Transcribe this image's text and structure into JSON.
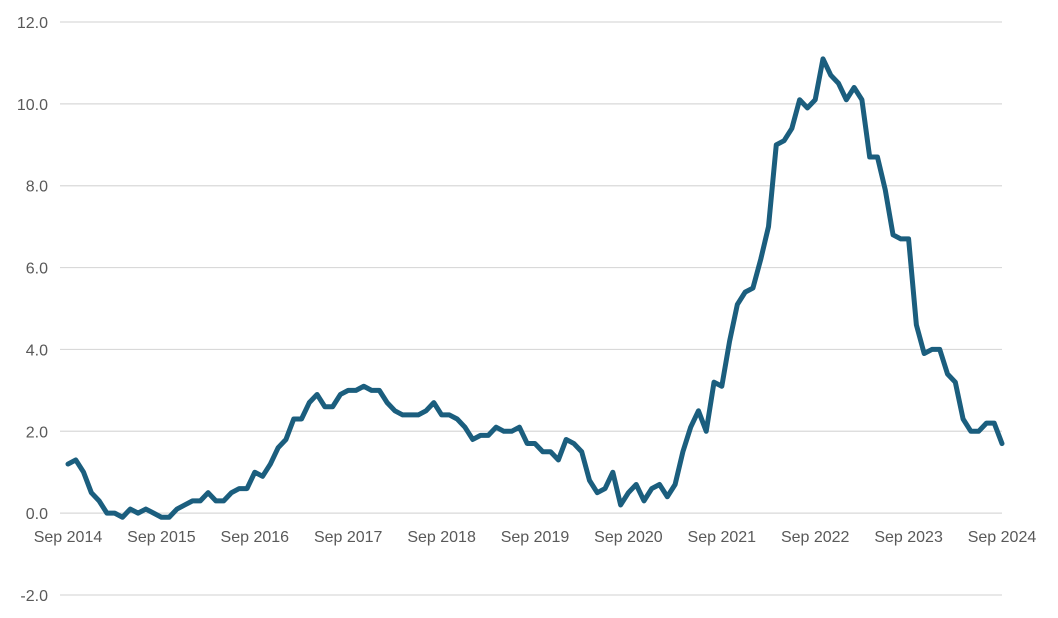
{
  "chart_data": {
    "type": "line",
    "title": "",
    "xlabel": "",
    "ylabel": "",
    "ylim": [
      -2.0,
      12.0
    ],
    "y_ticks": [
      "-2.0",
      "0.0",
      "2.0",
      "4.0",
      "6.0",
      "8.0",
      "10.0",
      "12.0"
    ],
    "y_tick_values": [
      -2,
      0,
      2,
      4,
      6,
      8,
      10,
      12
    ],
    "x_tick_labels": [
      "Sep 2014",
      "Sep 2015",
      "Sep 2016",
      "Sep 2017",
      "Sep 2018",
      "Sep 2019",
      "Sep 2020",
      "Sep 2021",
      "Sep 2022",
      "Sep 2023",
      "Sep 2024"
    ],
    "x_start": "Sep 2014",
    "x_end": "Sep 2024",
    "grid": true,
    "legend": "none",
    "colors": {
      "line": "#1b5e7e",
      "grid": "#d9d9d9",
      "tick_text": "#595959"
    },
    "series": [
      {
        "values": [
          1.2,
          1.3,
          1.0,
          0.5,
          0.3,
          0.0,
          0.0,
          -0.1,
          0.1,
          0.0,
          0.1,
          0.0,
          -0.1,
          -0.1,
          0.1,
          0.2,
          0.3,
          0.3,
          0.5,
          0.3,
          0.3,
          0.5,
          0.6,
          0.6,
          1.0,
          0.9,
          1.2,
          1.6,
          1.8,
          2.3,
          2.3,
          2.7,
          2.9,
          2.6,
          2.6,
          2.9,
          3.0,
          3.0,
          3.1,
          3.0,
          3.0,
          2.7,
          2.5,
          2.4,
          2.4,
          2.4,
          2.5,
          2.7,
          2.4,
          2.4,
          2.3,
          2.1,
          1.8,
          1.9,
          1.9,
          2.1,
          2.0,
          2.0,
          2.1,
          1.7,
          1.7,
          1.5,
          1.5,
          1.3,
          1.8,
          1.7,
          1.5,
          0.8,
          0.5,
          0.6,
          1.0,
          0.2,
          0.5,
          0.7,
          0.3,
          0.6,
          0.7,
          0.4,
          0.7,
          1.5,
          2.1,
          2.5,
          2.0,
          3.2,
          3.1,
          4.2,
          5.1,
          5.4,
          5.5,
          6.2,
          7.0,
          9.0,
          9.1,
          9.4,
          10.1,
          9.9,
          10.1,
          11.1,
          10.7,
          10.5,
          10.1,
          10.4,
          10.1,
          8.7,
          8.7,
          7.9,
          6.8,
          6.7,
          6.7,
          4.6,
          3.9,
          4.0,
          4.0,
          3.4,
          3.2,
          2.3,
          2.0,
          2.0,
          2.2,
          2.2,
          1.7
        ]
      }
    ]
  }
}
